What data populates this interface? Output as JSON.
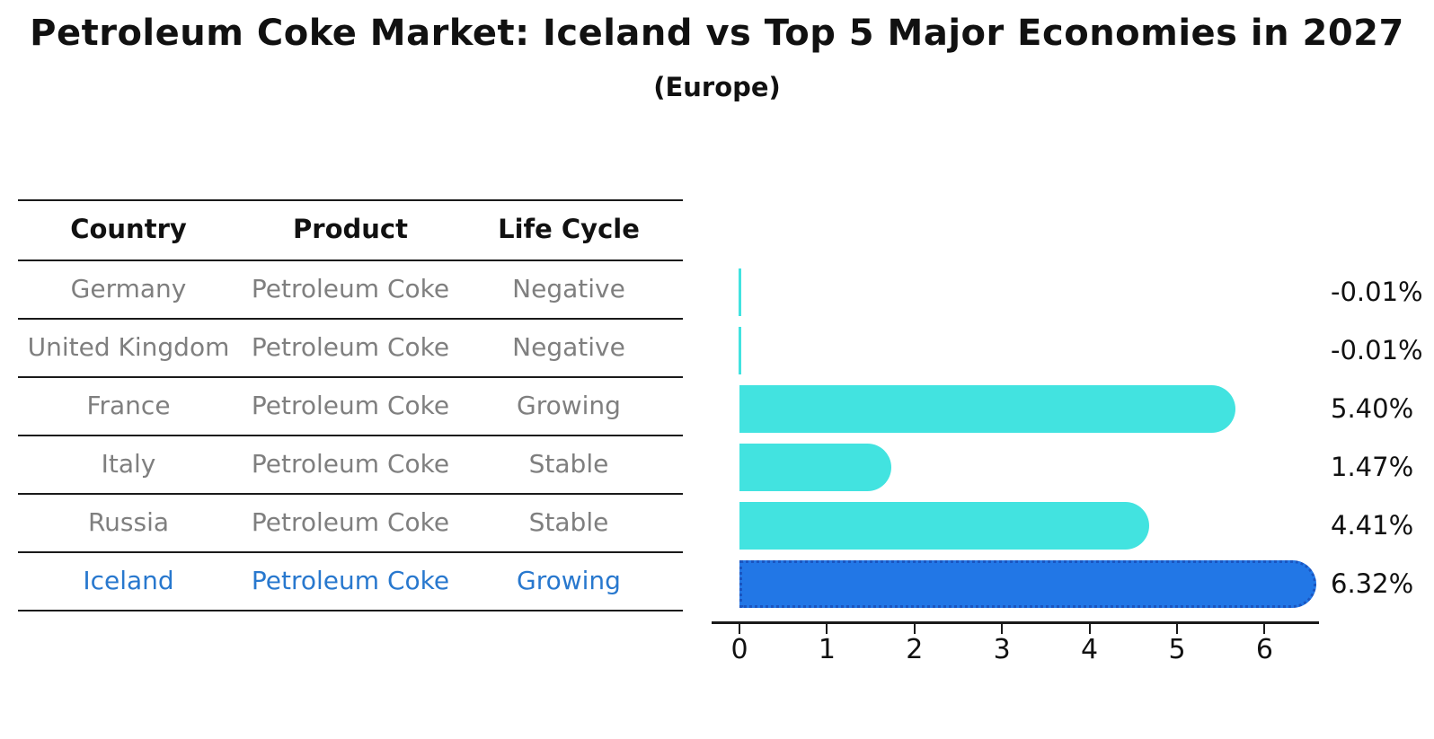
{
  "title": "Petroleum Coke Market: Iceland vs Top 5 Major Economies in 2027",
  "subtitle": "(Europe)",
  "table": {
    "headers": [
      "Country",
      "Product",
      "Life Cycle"
    ],
    "rows": [
      {
        "country": "Germany",
        "product": "Petroleum Coke",
        "life_cycle": "Negative",
        "highlight": false
      },
      {
        "country": "United Kingdom",
        "product": "Petroleum Coke",
        "life_cycle": "Negative",
        "highlight": false
      },
      {
        "country": "France",
        "product": "Petroleum Coke",
        "life_cycle": "Growing",
        "highlight": false
      },
      {
        "country": "Italy",
        "product": "Petroleum Coke",
        "life_cycle": "Stable",
        "highlight": false
      },
      {
        "country": "Russia",
        "product": "Petroleum Coke",
        "life_cycle": "Stable",
        "highlight": false
      },
      {
        "country": "Iceland",
        "product": "Petroleum Coke",
        "life_cycle": "Growing",
        "highlight": true
      }
    ]
  },
  "chart_data": {
    "type": "bar",
    "orientation": "horizontal",
    "title": "Petroleum Coke Market: Iceland vs Top 5 Major Economies in 2027 (Europe)",
    "categories": [
      "Germany",
      "United Kingdom",
      "France",
      "Italy",
      "Russia",
      "Iceland"
    ],
    "values": [
      -0.01,
      -0.01,
      5.4,
      1.47,
      4.41,
      6.32
    ],
    "value_labels": [
      "-0.01%",
      "-0.01%",
      "5.40%",
      "1.47%",
      "4.41%",
      "6.32%"
    ],
    "xticks": [
      "0",
      "1",
      "2",
      "3",
      "4",
      "5",
      "6"
    ],
    "xlim": [
      0,
      6.62
    ],
    "grid": false,
    "legend": "none",
    "highlight_index": 5
  },
  "colors": {
    "bar": "#42E3E0",
    "highlight_bar": "#2277E6",
    "highlight_border": "#1A55C0",
    "highlight_text": "#2878CE",
    "row_text": "#7f7f7f",
    "header_text": "#111111"
  }
}
